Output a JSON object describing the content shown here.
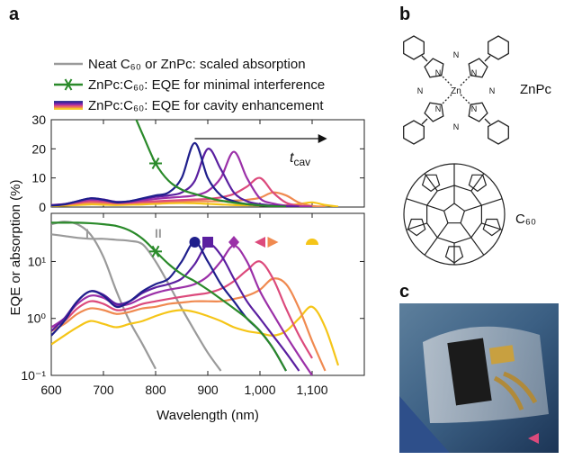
{
  "figure": {
    "panel_labels": [
      "a",
      "b",
      "c"
    ],
    "zn_pc_label": "ZnPc",
    "c60_label": "C₆₀",
    "atoms": {
      "zn": "Zn",
      "n": "N"
    }
  },
  "chart_data": {
    "type": "line",
    "xlabel": "Wavelength (nm)",
    "ylabel": "EQE or absorption (%)",
    "x": [
      600,
      625,
      650,
      675,
      700,
      725,
      750,
      775,
      800,
      825,
      850,
      875,
      900,
      925,
      950,
      975,
      1000,
      1025,
      1050,
      1075,
      1100,
      1125,
      1150
    ],
    "xlim": [
      600,
      1200
    ],
    "xticks": [
      600,
      700,
      800,
      900,
      {
        "value": 1000,
        "label": "1,000"
      },
      {
        "value": 1100,
        "label": "1,100"
      }
    ],
    "panels": [
      {
        "ylim": [
          0,
          30
        ],
        "yticks": [
          0,
          10,
          20,
          30
        ],
        "log": false
      },
      {
        "ylim": [
          0.1,
          70
        ],
        "yticks": [
          {
            "value": 0.1,
            "label": "10⁻¹"
          },
          {
            "value": 1,
            "label": "10⁰"
          },
          {
            "value": 10,
            "label": "10¹"
          }
        ],
        "log": true
      }
    ],
    "series": [
      {
        "label": "I",
        "color": "#9a9a9a",
        "panels": [
          1
        ],
        "values": [
          45,
          50,
          45,
          30,
          12,
          3,
          0.9,
          0.35,
          0.13,
          null,
          null,
          null,
          null,
          null,
          null,
          null,
          null,
          null,
          null,
          null,
          null,
          null,
          null
        ]
      },
      {
        "label": "II",
        "color": "#9a9a9a",
        "panels": [
          1
        ],
        "values": [
          30,
          28,
          26,
          25,
          25,
          24,
          23,
          20,
          10,
          4,
          1.5,
          0.6,
          0.25,
          0.12,
          null,
          null,
          null,
          null,
          null,
          null,
          null,
          null,
          null
        ]
      },
      {
        "color": "#f5c518",
        "marker": "half-circle",
        "values": [
          0.35,
          0.5,
          0.7,
          0.9,
          0.8,
          0.7,
          0.8,
          0.9,
          1.1,
          1.3,
          1.4,
          1.3,
          1.1,
          0.9,
          0.7,
          0.6,
          0.55,
          0.5,
          0.6,
          1,
          1.6,
          0.7,
          0.15
        ]
      },
      {
        "color": "#f08a50",
        "marker": "triangle-right",
        "values": [
          0.6,
          0.8,
          1.2,
          1.5,
          1.4,
          1.2,
          1.3,
          1.5,
          1.6,
          1.8,
          1.9,
          2,
          2,
          2,
          2.2,
          2.5,
          3.2,
          5,
          4,
          1.5,
          0.4,
          0.12,
          null
        ]
      },
      {
        "color": "#dc4a7c",
        "marker": "triangle-left",
        "values": [
          0.7,
          0.9,
          1.5,
          2,
          1.8,
          1.4,
          1.5,
          1.8,
          2,
          2.2,
          2.4,
          2.6,
          2.8,
          3.3,
          4.5,
          7,
          10,
          5,
          1.5,
          0.5,
          0.2,
          null,
          null
        ]
      },
      {
        "color": "#9b30a8",
        "marker": "diamond",
        "values": [
          0.7,
          1,
          1.8,
          2.5,
          2.3,
          1.7,
          1.8,
          2.3,
          2.8,
          3.2,
          3.5,
          4,
          5.5,
          10,
          19,
          10,
          3,
          1.2,
          0.5,
          0.22,
          0.1,
          null,
          null
        ]
      },
      {
        "color": "#5a1fa0",
        "marker": "square",
        "values": [
          0.6,
          1,
          2,
          3,
          2.6,
          1.8,
          2,
          2.8,
          3.5,
          4,
          5,
          9,
          20,
          13,
          5,
          2,
          1,
          0.5,
          0.25,
          0.12,
          null,
          null,
          null
        ]
      },
      {
        "color": "#1f1f8c",
        "marker": "circle",
        "values": [
          0.5,
          0.9,
          2,
          3,
          2.5,
          1.6,
          2,
          3,
          4,
          5,
          10,
          22,
          10,
          4,
          2,
          1,
          0.6,
          0.3,
          0.12,
          null,
          null,
          null,
          null
        ]
      },
      {
        "color": "#2a8a2a",
        "marker": "asterisk",
        "marker_x": 800,
        "values": [
          48,
          48,
          48,
          47,
          45,
          42,
          35,
          25,
          15,
          9,
          6,
          4.5,
          3.2,
          2.2,
          1.5,
          1,
          0.6,
          0.3,
          0.12,
          null,
          null,
          null,
          null
        ]
      }
    ],
    "legend": [
      {
        "label": "Neat C₆₀ or ZnPc: scaled absorption",
        "colors": [
          "#9a9a9a"
        ]
      },
      {
        "label": "ZnPc:C₆₀: EQE for minimal interference",
        "colors": [
          "#2a8a2a"
        ],
        "marker": "asterisk"
      },
      {
        "label": "ZnPc:C₆₀: EQE for cavity enhancement",
        "colors": [
          "#1f1f8c",
          "#5a1fa0",
          "#9b30a8",
          "#dc4a7c",
          "#f08a50",
          "#f5c518"
        ]
      }
    ],
    "arrow_label": "t",
    "arrow_label_sub": "cav"
  }
}
